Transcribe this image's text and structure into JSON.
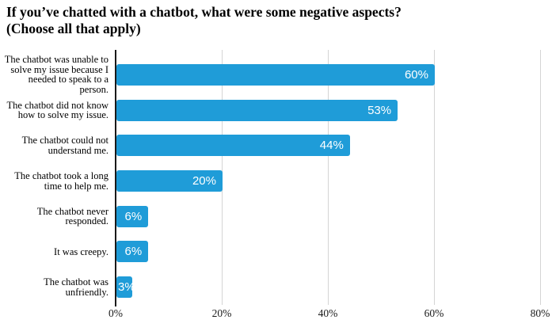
{
  "page": {
    "title_line1": "If you’ve chatted with a chatbot, what were some negative aspects?",
    "title_line2": "(Choose all that apply)"
  },
  "chart_data": {
    "type": "bar",
    "orientation": "horizontal",
    "title": "If you’ve chatted with a chatbot, what were some negative aspects? (Choose all that apply)",
    "categories": [
      "The chatbot was unable to solve my issue because I needed to speak to a person.",
      "The chatbot did not know how to solve my issue.",
      "The chatbot could not understand me.",
      "The chatbot took a long time to help me.",
      "The chatbot never responded.",
      "It was creepy.",
      "The chatbot was unfriendly."
    ],
    "values": [
      60,
      53,
      44,
      20,
      6,
      6,
      3
    ],
    "value_labels": [
      "60%",
      "53%",
      "44%",
      "20%",
      "6%",
      "6%",
      "3%"
    ],
    "xlabel": "",
    "ylabel": "",
    "xlim": [
      0,
      80
    ],
    "x_tick_values": [
      0,
      20,
      40,
      60,
      80
    ],
    "x_tick_labels": [
      "0%",
      "20%",
      "40%",
      "60%",
      "80%"
    ],
    "grid": true,
    "legend": false,
    "bar_color": "#1F9CD8",
    "value_label_color": "#FFFFFF",
    "gridline_color": "#D4D4D4",
    "axis_color": "#1A1A1A",
    "background_color": "#FFFFFF"
  }
}
